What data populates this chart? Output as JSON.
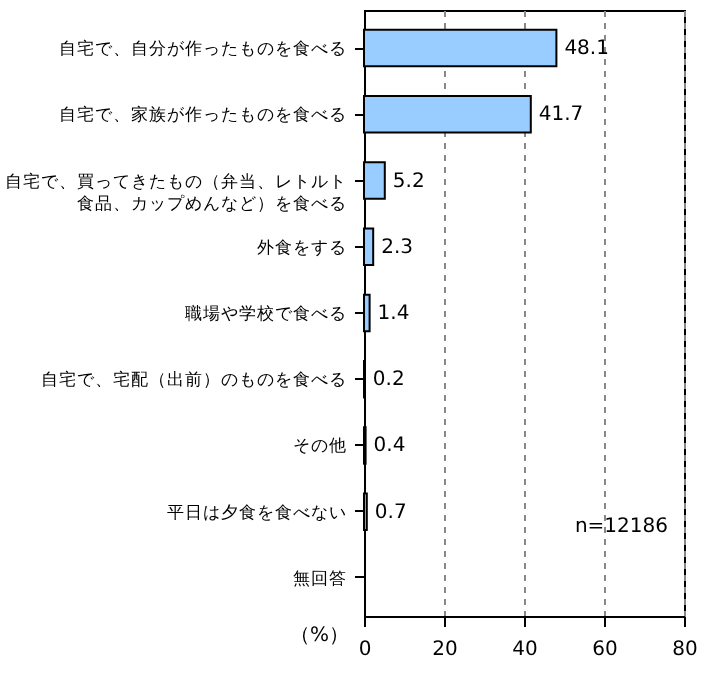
{
  "chart_data": {
    "type": "bar",
    "orientation": "horizontal",
    "categories": [
      "自宅で、自分が作ったものを食べる",
      "自宅で、家族が作ったものを食べる",
      "自宅で、買ってきたもの（弁当、レトルト食品、カップめんなど）を食べる",
      "外食をする",
      "職場や学校で食べる",
      "自宅で、宅配（出前）のものを食べる",
      "その他",
      "平日は夕食を食べない",
      "無回答"
    ],
    "values": [
      48.1,
      41.7,
      5.2,
      2.3,
      1.4,
      0.2,
      0.4,
      0.7,
      null
    ],
    "color": "#99ccff",
    "data_labels": true,
    "xlim": [
      0,
      80
    ],
    "xticks": [
      0,
      20,
      40,
      60,
      80
    ],
    "xlabel": "（%）",
    "grid": "x",
    "annotations": [
      "n=12186"
    ]
  }
}
